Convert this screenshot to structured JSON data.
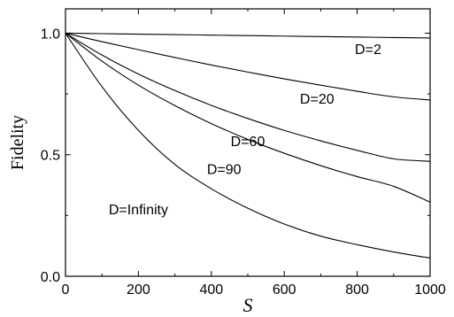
{
  "chart_data": {
    "type": "line",
    "title": "",
    "xlabel": "S",
    "ylabel": "Fidelity",
    "xlim": [
      0,
      1000
    ],
    "ylim": [
      0.0,
      1.1
    ],
    "x_ticks": [
      0,
      200,
      400,
      600,
      800,
      1000
    ],
    "x_tick_labels": [
      "0",
      "200",
      "400",
      "600",
      "800",
      "1000"
    ],
    "y_ticks": [
      0.0,
      0.5,
      1.0
    ],
    "y_tick_labels": [
      "0.0",
      "0.5",
      "1.0"
    ],
    "grid": false,
    "legend": "inline labels",
    "x": [
      0,
      100,
      200,
      300,
      400,
      500,
      600,
      700,
      800,
      900,
      1000
    ],
    "series": [
      {
        "name": "D=2",
        "label_anchor": [
          830,
          0.915
        ],
        "values": [
          1.0,
          0.998,
          0.996,
          0.994,
          0.992,
          0.99,
          0.988,
          0.986,
          0.984,
          0.982,
          0.98
        ]
      },
      {
        "name": "D=20",
        "label_anchor": [
          690,
          0.71
        ],
        "values": [
          1.0,
          0.965,
          0.932,
          0.9,
          0.869,
          0.84,
          0.812,
          0.786,
          0.761,
          0.738,
          0.725
        ]
      },
      {
        "name": "D=60",
        "label_anchor": [
          500,
          0.535
        ],
        "values": [
          1.0,
          0.91,
          0.832,
          0.764,
          0.703,
          0.649,
          0.6,
          0.557,
          0.518,
          0.483,
          0.473
        ]
      },
      {
        "name": "D=90",
        "label_anchor": [
          435,
          0.42
        ],
        "values": [
          1.0,
          0.885,
          0.786,
          0.702,
          0.628,
          0.563,
          0.506,
          0.455,
          0.41,
          0.37,
          0.305
        ]
      },
      {
        "name": "D=Infinity",
        "label_anchor": [
          200,
          0.255
        ],
        "values": [
          1.0,
          0.78,
          0.6,
          0.46,
          0.36,
          0.28,
          0.215,
          0.165,
          0.13,
          0.1,
          0.075
        ]
      }
    ]
  }
}
